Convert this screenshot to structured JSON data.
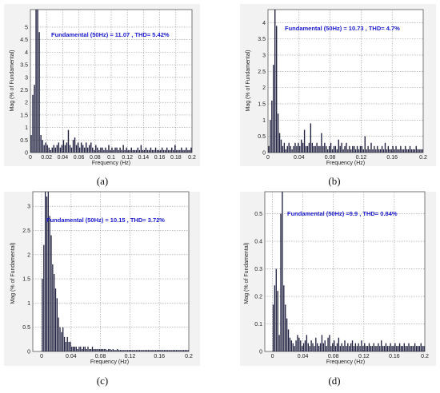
{
  "chart_data": [
    {
      "type": "bar",
      "panel_label": "(a)",
      "title": "Fundamental (50Hz) = 11.07 , THD= 5.42%",
      "xlabel": "Frequency (Hz)",
      "ylabel": "Mag (% of Fundamental)",
      "xlim": [
        0,
        0.2
      ],
      "ylim": [
        0,
        5.7
      ],
      "xticks": [
        "0",
        "0.02",
        "0.04",
        "0.06",
        "0.08",
        "0.1",
        "0.12",
        "0.14",
        "0.16",
        "0.18",
        "0.2"
      ],
      "yticks": [
        "0",
        "0.5",
        "1",
        "1.5",
        "2",
        "2.5",
        "3",
        "3.5",
        "4",
        "4.5",
        "5"
      ],
      "x": [
        0.001,
        0.003,
        0.005,
        0.007,
        0.009,
        0.011,
        0.013,
        0.015,
        0.017,
        0.019,
        0.021,
        0.023,
        0.025,
        0.027,
        0.029,
        0.031,
        0.033,
        0.035,
        0.037,
        0.039,
        0.041,
        0.043,
        0.045,
        0.047,
        0.049,
        0.051,
        0.053,
        0.055,
        0.057,
        0.059,
        0.061,
        0.063,
        0.065,
        0.067,
        0.069,
        0.071,
        0.073,
        0.075,
        0.077,
        0.079,
        0.081,
        0.083,
        0.085,
        0.087,
        0.089,
        0.091,
        0.093,
        0.095,
        0.097,
        0.099,
        0.101,
        0.103,
        0.105,
        0.107,
        0.109,
        0.111,
        0.113,
        0.115,
        0.117,
        0.119,
        0.121,
        0.123,
        0.125,
        0.127,
        0.129,
        0.131,
        0.133,
        0.135,
        0.137,
        0.139,
        0.141,
        0.143,
        0.145,
        0.147,
        0.149,
        0.151,
        0.153,
        0.155,
        0.157,
        0.159,
        0.161,
        0.163,
        0.165,
        0.167,
        0.169,
        0.171,
        0.173,
        0.175,
        0.177,
        0.179,
        0.181,
        0.183,
        0.185,
        0.187,
        0.189,
        0.191,
        0.193,
        0.195,
        0.197,
        0.199
      ],
      "values": [
        0.7,
        2.3,
        2.7,
        5.7,
        5.7,
        4.8,
        0.7,
        0.5,
        0.3,
        0.4,
        0.3,
        0.2,
        0.1,
        0.2,
        0.3,
        0.2,
        0.3,
        0.4,
        0.2,
        0.3,
        0.5,
        0.3,
        0.4,
        0.9,
        0.3,
        0.2,
        0.5,
        0.6,
        0.3,
        0.4,
        0.2,
        0.4,
        0.3,
        0.2,
        0.4,
        0.2,
        0.3,
        0.4,
        0.2,
        0.1,
        0.3,
        0.2,
        0.1,
        0.2,
        0.2,
        0.1,
        0.2,
        0.1,
        0.3,
        0.1,
        0.2,
        0.1,
        0.2,
        0.2,
        0.1,
        0.2,
        0.1,
        0.3,
        0.1,
        0.2,
        0.1,
        0.1,
        0.2,
        0.1,
        0.1,
        0.1,
        0.2,
        0.1,
        0.3,
        0.1,
        0.1,
        0.2,
        0.1,
        0.1,
        0.2,
        0.1,
        0.1,
        0.2,
        0.1,
        0.1,
        0.1,
        0.2,
        0.1,
        0.1,
        0.2,
        0.1,
        0.1,
        0.2,
        0.1,
        0.3,
        0.1,
        0.1,
        0.1,
        0.2,
        0.1,
        0.1,
        0.2,
        0.1,
        0.1,
        0.2
      ]
    },
    {
      "type": "bar",
      "panel_label": "(b)",
      "title": "Fundamental (50Hz) = 10.73 , THD= 4.7%",
      "xlabel": "Frequency (Hz)",
      "ylabel": "Mag (% of Fundamental)",
      "xlim": [
        0,
        0.2
      ],
      "ylim": [
        0,
        4.4
      ],
      "xticks": [
        "0",
        "0.04",
        "0.08",
        "0.12",
        "0.16",
        "0.2"
      ],
      "yticks": [
        "0",
        "0.5",
        "1",
        "1.5",
        "2",
        "2.5",
        "3",
        "3.5",
        "4"
      ],
      "x": [
        0.001,
        0.003,
        0.005,
        0.007,
        0.009,
        0.011,
        0.013,
        0.015,
        0.017,
        0.019,
        0.021,
        0.023,
        0.025,
        0.027,
        0.029,
        0.031,
        0.033,
        0.035,
        0.037,
        0.039,
        0.041,
        0.043,
        0.045,
        0.047,
        0.049,
        0.051,
        0.053,
        0.055,
        0.057,
        0.059,
        0.061,
        0.063,
        0.065,
        0.067,
        0.069,
        0.071,
        0.073,
        0.075,
        0.077,
        0.079,
        0.081,
        0.083,
        0.085,
        0.087,
        0.089,
        0.091,
        0.093,
        0.095,
        0.097,
        0.099,
        0.101,
        0.103,
        0.105,
        0.107,
        0.109,
        0.111,
        0.113,
        0.115,
        0.117,
        0.119,
        0.121,
        0.123,
        0.125,
        0.127,
        0.129,
        0.131,
        0.133,
        0.135,
        0.137,
        0.139,
        0.141,
        0.143,
        0.145,
        0.147,
        0.149,
        0.151,
        0.153,
        0.155,
        0.157,
        0.159,
        0.161,
        0.163,
        0.165,
        0.167,
        0.169,
        0.171,
        0.173,
        0.175,
        0.177,
        0.179,
        0.181,
        0.183,
        0.185,
        0.187,
        0.189,
        0.191,
        0.193,
        0.195,
        0.197,
        0.199
      ],
      "values": [
        0.2,
        1.0,
        1.6,
        2.7,
        4.4,
        3.9,
        1.2,
        0.6,
        0.4,
        0.2,
        0.3,
        0.1,
        0.2,
        0.3,
        0.2,
        0.1,
        0.2,
        0.3,
        0.2,
        0.3,
        0.2,
        0.4,
        0.3,
        0.7,
        0.2,
        0.2,
        0.3,
        0.9,
        0.3,
        0.2,
        0.2,
        0.3,
        0.2,
        0.2,
        0.6,
        0.2,
        0.3,
        0.2,
        0.1,
        0.2,
        0.3,
        0.1,
        0.2,
        0.2,
        0.1,
        0.4,
        0.2,
        0.3,
        0.1,
        0.2,
        0.3,
        0.1,
        0.2,
        0.1,
        0.2,
        0.2,
        0.1,
        0.2,
        0.1,
        0.2,
        0.2,
        0.1,
        0.5,
        0.1,
        0.2,
        0.1,
        0.3,
        0.1,
        0.2,
        0.1,
        0.2,
        0.1,
        0.1,
        0.2,
        0.1,
        0.3,
        0.1,
        0.2,
        0.1,
        0.1,
        0.2,
        0.1,
        0.2,
        0.1,
        0.1,
        0.2,
        0.1,
        0.1,
        0.2,
        0.1,
        0.1,
        0.2,
        0.1,
        0.1,
        0.1,
        0.2,
        0.1,
        0.1,
        0.1,
        0.1
      ]
    },
    {
      "type": "bar",
      "panel_label": "(c)",
      "title": "Fundamental (50Hz) = 10.15 , THD= 3.72%",
      "xlabel": "Frequency (Hz)",
      "ylabel": "Mag (% of Fundamental)",
      "xlim": [
        -0.012,
        0.2
      ],
      "ylim": [
        0,
        3.3
      ],
      "xticks": [
        "0",
        "0.04",
        "0.08",
        "0.12",
        "0.16",
        "0.2"
      ],
      "yticks": [
        "0",
        "0.5",
        "1",
        "1.5",
        "2",
        "2.5",
        "3"
      ],
      "x": [
        0.001,
        0.003,
        0.005,
        0.007,
        0.009,
        0.011,
        0.013,
        0.015,
        0.017,
        0.019,
        0.021,
        0.023,
        0.025,
        0.027,
        0.029,
        0.031,
        0.033,
        0.035,
        0.037,
        0.039,
        0.041,
        0.043,
        0.045,
        0.047,
        0.049,
        0.051,
        0.053,
        0.055,
        0.057,
        0.059,
        0.061,
        0.063,
        0.065,
        0.067,
        0.069,
        0.071,
        0.073,
        0.075,
        0.077,
        0.079,
        0.081,
        0.083,
        0.085,
        0.087,
        0.089,
        0.091,
        0.093,
        0.095,
        0.097,
        0.099,
        0.101,
        0.103,
        0.105,
        0.107,
        0.109,
        0.111,
        0.113,
        0.115,
        0.117,
        0.119,
        0.121,
        0.123,
        0.125,
        0.127,
        0.129,
        0.131,
        0.133,
        0.135,
        0.137,
        0.139,
        0.141,
        0.143,
        0.145,
        0.147,
        0.149,
        0.151,
        0.153,
        0.155,
        0.157,
        0.159,
        0.161,
        0.163,
        0.165,
        0.167,
        0.169,
        0.171,
        0.173,
        0.175,
        0.177,
        0.179,
        0.181,
        0.183,
        0.185,
        0.187,
        0.189,
        0.191,
        0.193,
        0.195,
        0.197,
        0.199
      ],
      "values": [
        1.5,
        2.2,
        3.3,
        3.2,
        3.3,
        2.8,
        2.4,
        1.8,
        1.6,
        1.3,
        1.1,
        0.7,
        0.5,
        0.4,
        0.5,
        0.3,
        0.2,
        0.3,
        0.2,
        0.2,
        0.1,
        0.1,
        0.1,
        0.1,
        0.05,
        0.1,
        0.1,
        0.05,
        0.1,
        0.1,
        0.05,
        0.1,
        0.05,
        0.05,
        0.1,
        0.05,
        0.05,
        0.05,
        0.05,
        0.05,
        0.05,
        0.05,
        0.05,
        0.05,
        0.03,
        0.05,
        0.05,
        0.03,
        0.05,
        0.03,
        0.03,
        0.05,
        0.03,
        0.03,
        0.03,
        0.03,
        0.03,
        0.03,
        0.03,
        0.03,
        0.03,
        0.03,
        0.03,
        0.03,
        0.03,
        0.03,
        0.03,
        0.03,
        0.03,
        0.03,
        0.03,
        0.03,
        0.03,
        0.03,
        0.03,
        0.03,
        0.03,
        0.03,
        0.03,
        0.03,
        0.03,
        0.03,
        0.03,
        0.03,
        0.03,
        0.03,
        0.03,
        0.03,
        0.03,
        0.03,
        0.03,
        0.03,
        0.03,
        0.03,
        0.03,
        0.03,
        0.03,
        0.03,
        0.03,
        0.03
      ]
    },
    {
      "type": "bar",
      "panel_label": "(d)",
      "title": "Fundamental (50Hz) =9.9 , THD= 0.84%",
      "xlabel": "Frequency (Hz)",
      "ylabel": "Mag (% of Fundamental)",
      "xlim": [
        -0.01,
        0.2
      ],
      "ylim": [
        0,
        0.58
      ],
      "xticks": [
        "0",
        "0.04",
        "0.08",
        "0.12",
        "0.16",
        "0.2"
      ],
      "yticks": [
        "0",
        "0.1",
        "0.2",
        "0.3",
        "0.4",
        "0.5"
      ],
      "x": [
        0.001,
        0.003,
        0.005,
        0.007,
        0.009,
        0.011,
        0.013,
        0.015,
        0.017,
        0.019,
        0.021,
        0.023,
        0.025,
        0.027,
        0.029,
        0.031,
        0.033,
        0.035,
        0.037,
        0.039,
        0.041,
        0.043,
        0.045,
        0.047,
        0.049,
        0.051,
        0.053,
        0.055,
        0.057,
        0.059,
        0.061,
        0.063,
        0.065,
        0.067,
        0.069,
        0.071,
        0.073,
        0.075,
        0.077,
        0.079,
        0.081,
        0.083,
        0.085,
        0.087,
        0.089,
        0.091,
        0.093,
        0.095,
        0.097,
        0.099,
        0.101,
        0.103,
        0.105,
        0.107,
        0.109,
        0.111,
        0.113,
        0.115,
        0.117,
        0.119,
        0.121,
        0.123,
        0.125,
        0.127,
        0.129,
        0.131,
        0.133,
        0.135,
        0.137,
        0.139,
        0.141,
        0.143,
        0.145,
        0.147,
        0.149,
        0.151,
        0.153,
        0.155,
        0.157,
        0.159,
        0.161,
        0.163,
        0.165,
        0.167,
        0.169,
        0.171,
        0.173,
        0.175,
        0.177,
        0.179,
        0.181,
        0.183,
        0.185,
        0.187,
        0.189,
        0.191,
        0.193,
        0.195,
        0.197,
        0.199
      ],
      "values": [
        0.17,
        0.24,
        0.3,
        0.22,
        0.06,
        0.5,
        0.58,
        0.24,
        0.17,
        0.12,
        0.08,
        0.05,
        0.04,
        0.03,
        0.02,
        0.04,
        0.06,
        0.05,
        0.04,
        0.02,
        0.03,
        0.04,
        0.06,
        0.03,
        0.02,
        0.04,
        0.03,
        0.02,
        0.05,
        0.03,
        0.02,
        0.03,
        0.06,
        0.03,
        0.04,
        0.02,
        0.05,
        0.06,
        0.02,
        0.03,
        0.04,
        0.02,
        0.03,
        0.05,
        0.02,
        0.03,
        0.02,
        0.04,
        0.02,
        0.03,
        0.02,
        0.03,
        0.04,
        0.02,
        0.03,
        0.02,
        0.03,
        0.02,
        0.04,
        0.02,
        0.03,
        0.02,
        0.02,
        0.03,
        0.02,
        0.02,
        0.03,
        0.02,
        0.02,
        0.03,
        0.02,
        0.04,
        0.02,
        0.02,
        0.03,
        0.02,
        0.02,
        0.03,
        0.02,
        0.02,
        0.03,
        0.02,
        0.02,
        0.03,
        0.02,
        0.02,
        0.03,
        0.02,
        0.02,
        0.03,
        0.02,
        0.02,
        0.02,
        0.03,
        0.02,
        0.02,
        0.02,
        0.03,
        0.02,
        0.02
      ]
    }
  ]
}
